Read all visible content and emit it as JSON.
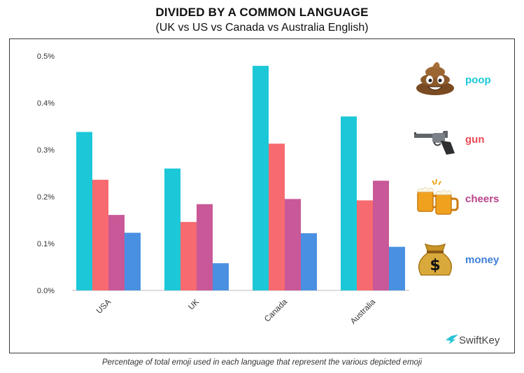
{
  "title": "DIVIDED BY A COMMON LANGUAGE",
  "subtitle": "(UK vs US vs Canada vs Australia English)",
  "caption": "Percentage of total emoji used in each language that represent the various depicted emoji",
  "brand": "SwiftKey",
  "colors": {
    "poop": "#1cc8d8",
    "gun": "#f76a6f",
    "cheers": "#c85897",
    "money": "#4a90e2"
  },
  "legend": [
    {
      "label": "poop",
      "icon": "poop-emoji-icon",
      "color": "#1cc8d8"
    },
    {
      "label": "gun",
      "icon": "pistol-emoji-icon",
      "color": "#e84a55"
    },
    {
      "label": "cheers",
      "icon": "beer-mugs-emoji-icon",
      "color": "#b9428a"
    },
    {
      "label": "money",
      "icon": "money-bag-emoji-icon",
      "color": "#3d7fd8"
    }
  ],
  "chart_data": {
    "type": "bar",
    "categories": [
      "USA",
      "UK",
      "Canada",
      "Australia"
    ],
    "series": [
      {
        "name": "poop",
        "values": [
          0.338,
          0.26,
          0.479,
          0.371
        ]
      },
      {
        "name": "gun",
        "values": [
          0.236,
          0.146,
          0.313,
          0.192
        ]
      },
      {
        "name": "cheers",
        "values": [
          0.161,
          0.184,
          0.195,
          0.234
        ]
      },
      {
        "name": "money",
        "values": [
          0.123,
          0.058,
          0.122,
          0.093
        ]
      }
    ],
    "ylim": [
      0,
      0.5
    ],
    "yticks": [
      "0.0%",
      "0.1%",
      "0.2%",
      "0.3%",
      "0.4%",
      "0.5%"
    ],
    "xlabel": "",
    "ylabel": "",
    "grid": false,
    "legend_position": "right"
  }
}
